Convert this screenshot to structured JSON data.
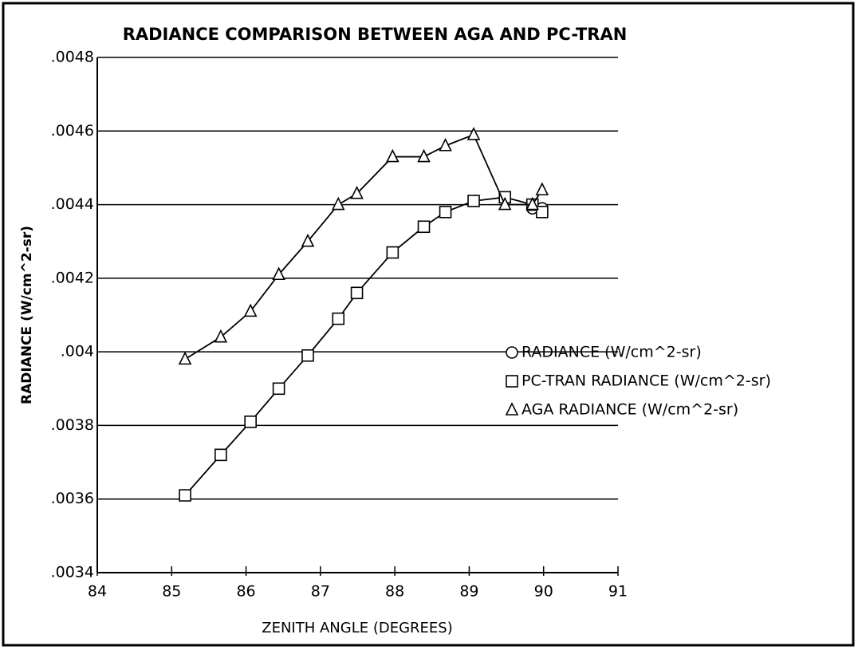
{
  "chart_data": {
    "type": "line",
    "title": "RADIANCE COMPARISON BETWEEN AGA AND PC-TRAN",
    "x_label": "ZENITH ANGLE (DEGREES)",
    "y_label": "RADIANCE (W/cm^2-sr)",
    "x": [
      85.18,
      85.66,
      86.06,
      86.44,
      86.83,
      87.24,
      87.49,
      87.97,
      88.39,
      88.68,
      89.06,
      89.48,
      89.85,
      89.98
    ],
    "series": [
      {
        "name": "RADIANCE (W/cm^2-sr)",
        "color": "#000000",
        "marker": "circle",
        "values": [
          null,
          null,
          null,
          null,
          null,
          null,
          null,
          null,
          null,
          null,
          null,
          null,
          0.00439,
          0.00439
        ]
      },
      {
        "name": "PC-TRAN RADIANCE (W/cm^2-sr)",
        "color": "#000000",
        "marker": "square",
        "values": [
          0.00361,
          0.00372,
          0.00381,
          0.0039,
          0.00399,
          0.00409,
          0.00416,
          0.00427,
          0.00434,
          0.00438,
          0.00441,
          0.00442,
          0.0044,
          0.00438
        ]
      },
      {
        "name": "AGA RADIANCE (W/cm^2-sr)",
        "color": "#000000",
        "marker": "triangle",
        "values": [
          0.00398,
          0.00404,
          0.00411,
          0.00421,
          0.0043,
          0.0044,
          0.00443,
          0.00453,
          0.00453,
          0.00456,
          0.00459,
          0.0044,
          0.0044,
          0.00444
        ]
      }
    ],
    "xlim": [
      84,
      91
    ],
    "xticks": [
      84,
      85,
      86,
      87,
      88,
      89,
      90,
      91
    ],
    "ylim": [
      0.0034,
      0.0048
    ],
    "yticks": [
      {
        "value": 0.0034,
        "label": ".0034"
      },
      {
        "value": 0.0036,
        "label": ".0036"
      },
      {
        "value": 0.0038,
        "label": ".0038"
      },
      {
        "value": 0.004,
        "label": ".004"
      },
      {
        "value": 0.0042,
        "label": ".0042"
      },
      {
        "value": 0.0044,
        "label": ".0044"
      },
      {
        "value": 0.0046,
        "label": ".0046"
      },
      {
        "value": 0.0048,
        "label": ".0048"
      }
    ],
    "grid": true,
    "legend": "right"
  }
}
